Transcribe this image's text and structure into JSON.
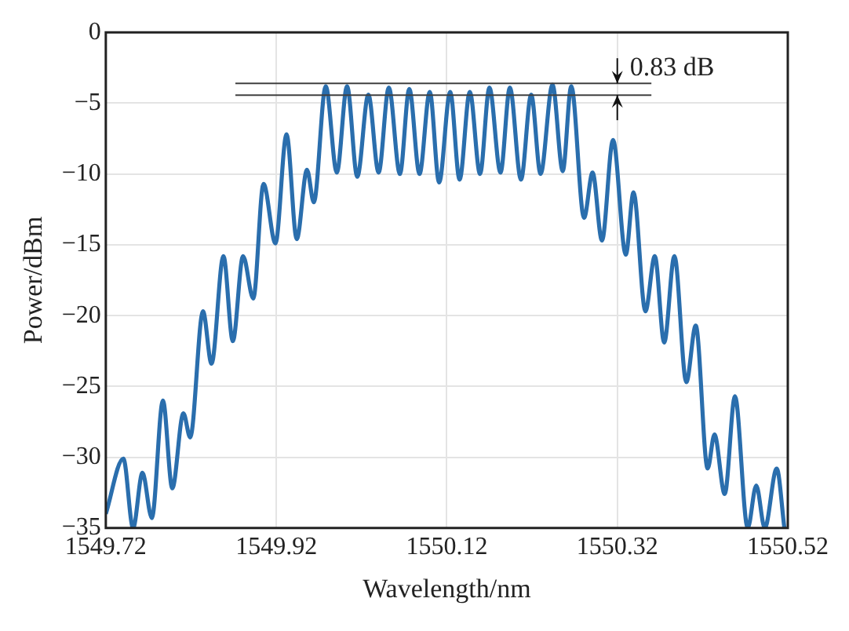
{
  "chart_data": {
    "type": "line",
    "xlabel": "Wavelength/nm",
    "ylabel": "Power/dBm",
    "x": [
      1549.72,
      1549.7406,
      1549.752,
      1549.763,
      1549.774,
      1549.787,
      1549.798,
      1549.811,
      1549.819,
      1549.834,
      1549.844,
      1549.858,
      1549.869,
      1549.881,
      1549.893,
      1549.905,
      1549.919,
      1549.932,
      1549.944,
      1549.956,
      1549.964,
      1549.978,
      1549.991,
      1550.003,
      1550.015,
      1550.028,
      1550.04,
      1550.052,
      1550.065,
      1550.076,
      1550.088,
      1550.1,
      1550.111,
      1550.124,
      1550.135,
      1550.147,
      1550.159,
      1550.17,
      1550.183,
      1550.194,
      1550.207,
      1550.219,
      1550.23,
      1550.244,
      1550.256,
      1550.266,
      1550.281,
      1550.291,
      1550.302,
      1550.315,
      1550.33,
      1550.339,
      1550.353,
      1550.364,
      1550.375,
      1550.387,
      1550.401,
      1550.412,
      1550.426,
      1550.434,
      1550.446,
      1550.458,
      1550.473,
      1550.483,
      1550.493,
      1550.507,
      1550.516
    ],
    "series": [
      {
        "color": "#2a6ead",
        "values": [
          -34,
          -30.1,
          -35,
          -31.1,
          -34.3,
          -26,
          -32.2,
          -26.9,
          -28.6,
          -19.7,
          -23.4,
          -15.8,
          -21.8,
          -15.8,
          -18.8,
          -10.7,
          -14.9,
          -7.2,
          -14.6,
          -9.7,
          -12,
          -3.8,
          -9.9,
          -3.8,
          -10.2,
          -4.4,
          -9.9,
          -3.9,
          -10,
          -4,
          -10,
          -4.2,
          -10.6,
          -4.2,
          -10.4,
          -4.2,
          -10,
          -3.9,
          -9.9,
          -3.9,
          -10.4,
          -4.4,
          -10,
          -3.7,
          -9.8,
          -3.8,
          -13.1,
          -9.9,
          -14.7,
          -7.6,
          -15.7,
          -11.3,
          -19.7,
          -15.8,
          -21.9,
          -15.8,
          -24.7,
          -20.7,
          -30.8,
          -28.4,
          -32.6,
          -25.7,
          -35,
          -32,
          -35,
          -30.8,
          -35
        ]
      }
    ],
    "xlim": [
      1549.72,
      1550.52
    ],
    "ylim": [
      -35,
      0
    ],
    "xticks": [
      {
        "value": 1549.72,
        "label": "1549.72"
      },
      {
        "value": 1549.92,
        "label": "1549.92"
      },
      {
        "value": 1550.12,
        "label": "1550.12"
      },
      {
        "value": 1550.32,
        "label": "1550.32"
      },
      {
        "value": 1550.52,
        "label": "1550.52"
      }
    ],
    "yticks": [
      -35,
      -30,
      -25,
      -20,
      -15,
      -10,
      -5,
      0
    ],
    "grid": true,
    "legend": false,
    "marker": "none",
    "line_style": "solid",
    "ref_lines": [
      {
        "axis": "y",
        "value": -3.6,
        "label": "0.83 dB",
        "color": "#404040"
      },
      {
        "axis": "y",
        "value": -4.43,
        "label": null,
        "color": "#404040"
      }
    ]
  }
}
